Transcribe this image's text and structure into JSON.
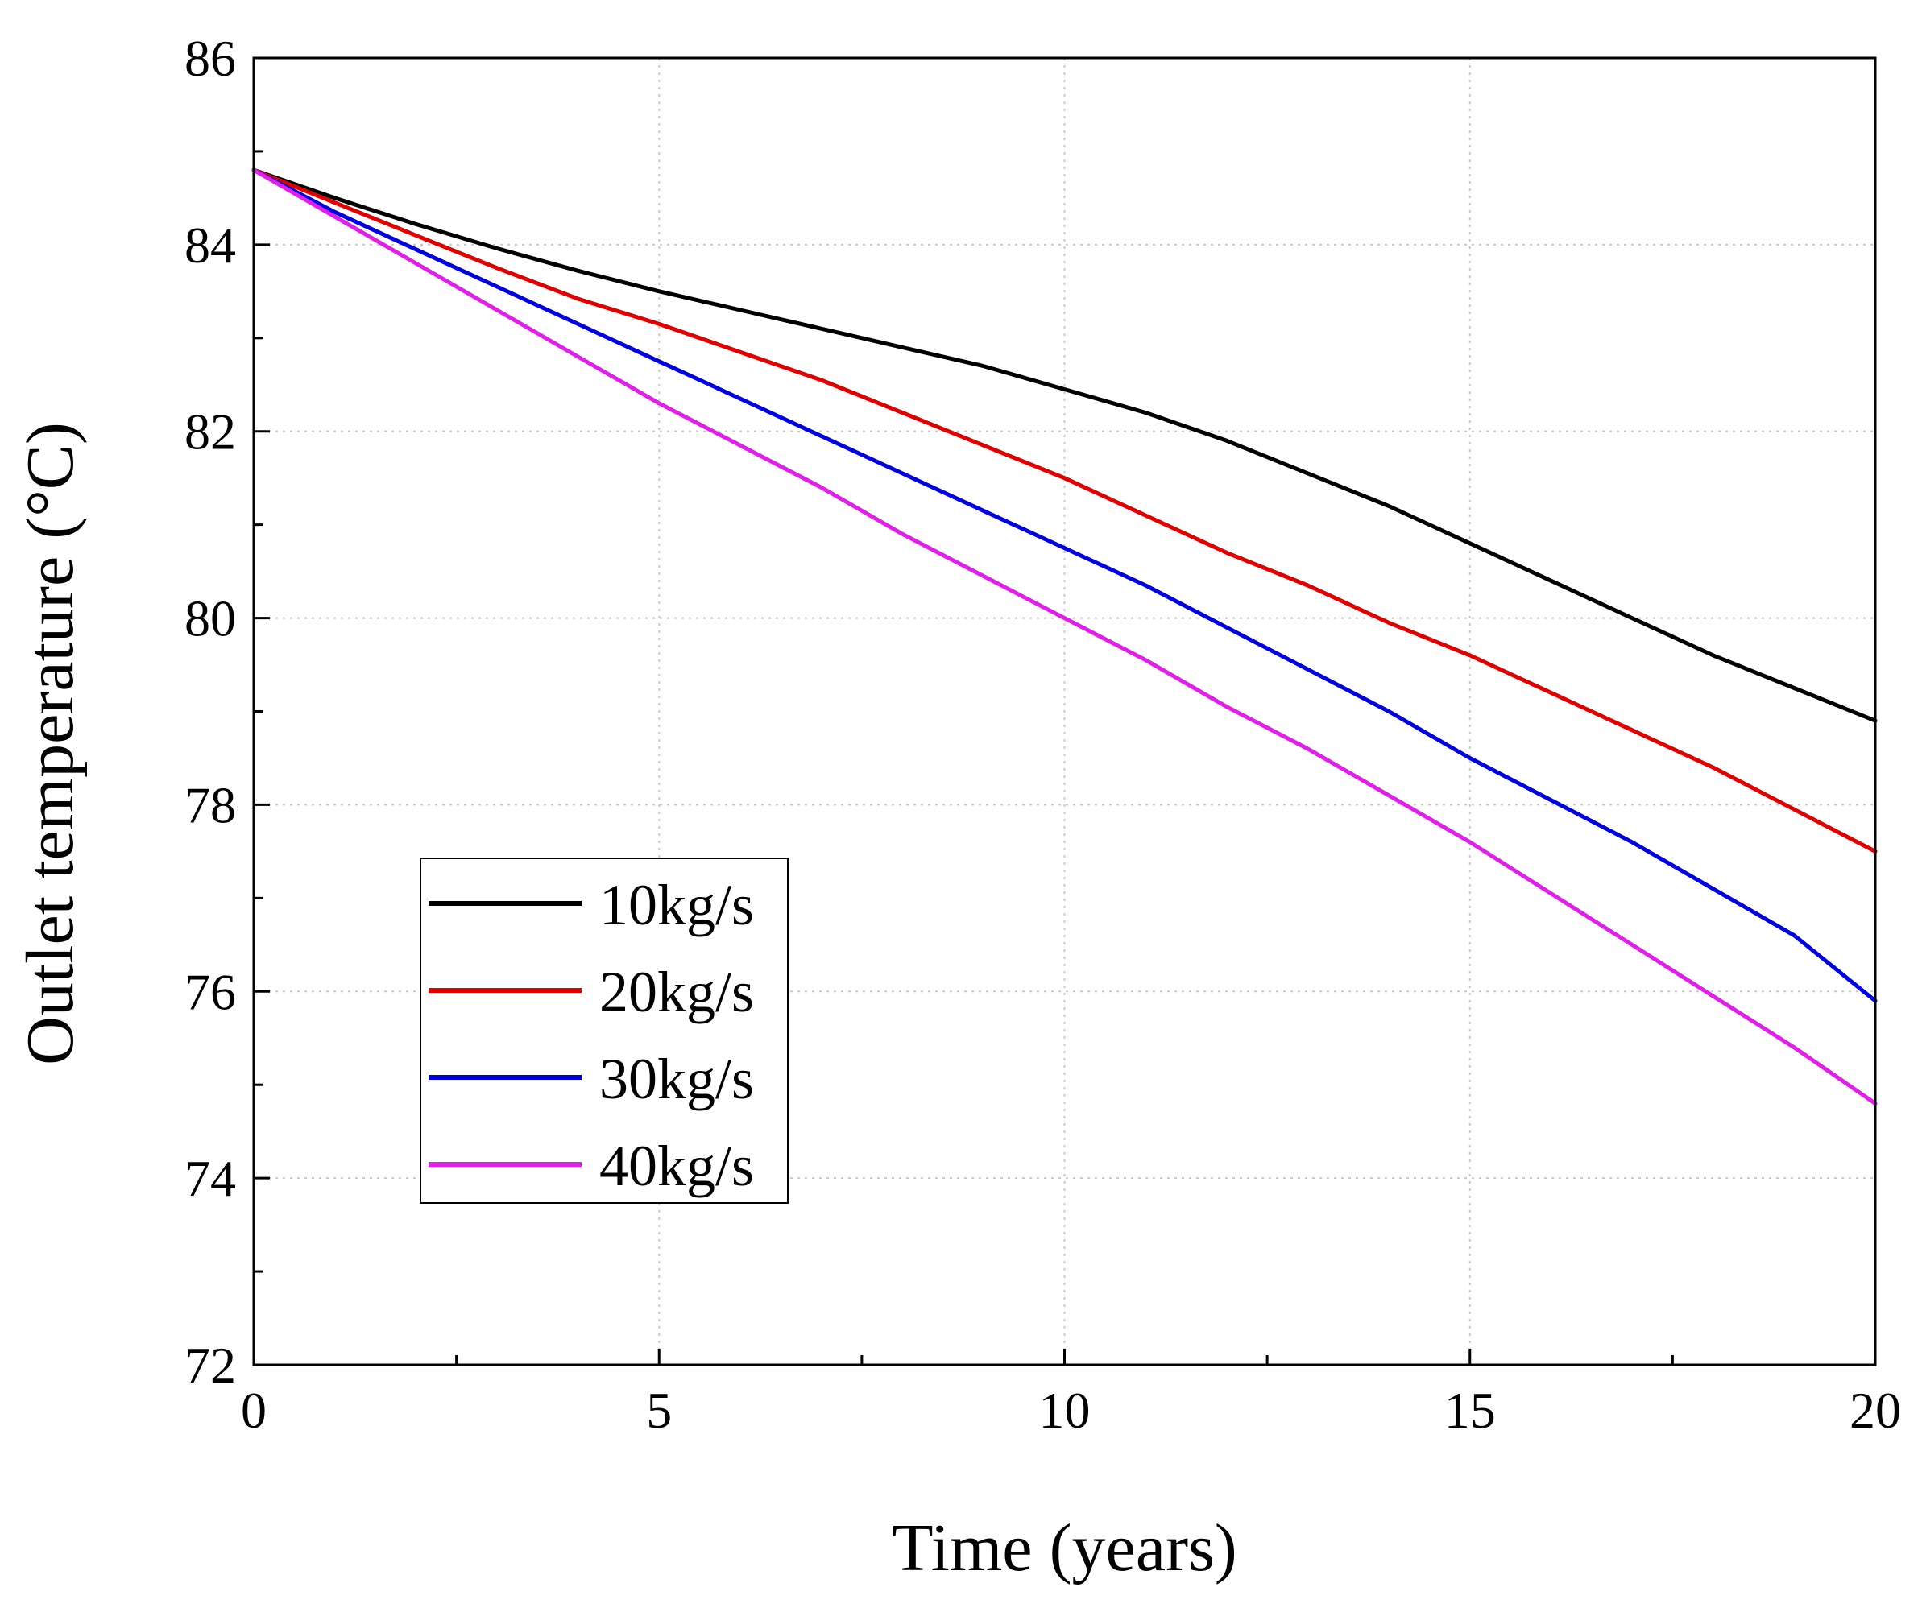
{
  "chart_data": {
    "type": "line",
    "title": "",
    "xlabel": "Time (years)",
    "ylabel": "Outlet temperature (°C)",
    "xlim": [
      0,
      20
    ],
    "ylim": [
      72,
      86
    ],
    "xticks": [
      0,
      5,
      10,
      15,
      20
    ],
    "yticks": [
      72,
      74,
      76,
      78,
      80,
      82,
      84,
      86
    ],
    "grid": true,
    "grid_style": "dotted",
    "legend_position": "lower-left",
    "x": [
      0,
      1,
      2,
      3,
      4,
      5,
      6,
      7,
      8,
      9,
      10,
      11,
      12,
      13,
      14,
      15,
      16,
      17,
      18,
      19,
      20
    ],
    "series": [
      {
        "name": "10kg/s",
        "color": "#000000",
        "values": [
          84.8,
          84.5,
          84.22,
          83.96,
          83.72,
          83.5,
          83.3,
          83.1,
          82.9,
          82.7,
          82.45,
          82.2,
          81.9,
          81.55,
          81.2,
          80.8,
          80.4,
          80.0,
          79.6,
          79.25,
          78.9
        ]
      },
      {
        "name": "20kg/s",
        "color": "#e00000",
        "values": [
          84.8,
          84.45,
          84.1,
          83.75,
          83.42,
          83.15,
          82.85,
          82.55,
          82.2,
          81.85,
          81.5,
          81.1,
          80.7,
          80.35,
          79.95,
          79.6,
          79.2,
          78.8,
          78.4,
          77.95,
          77.5
        ]
      },
      {
        "name": "30kg/s",
        "color": "#0000e0",
        "values": [
          84.8,
          84.35,
          83.95,
          83.55,
          83.15,
          82.75,
          82.35,
          81.95,
          81.55,
          81.15,
          80.75,
          80.35,
          79.9,
          79.45,
          79.0,
          78.5,
          78.05,
          77.6,
          77.1,
          76.6,
          75.9
        ]
      },
      {
        "name": "40kg/s",
        "color": "#e020e8",
        "values": [
          84.8,
          84.3,
          83.8,
          83.3,
          82.8,
          82.3,
          81.85,
          81.4,
          80.9,
          80.45,
          80.0,
          79.55,
          79.05,
          78.6,
          78.1,
          77.6,
          77.05,
          76.5,
          75.95,
          75.4,
          74.8
        ]
      }
    ]
  }
}
